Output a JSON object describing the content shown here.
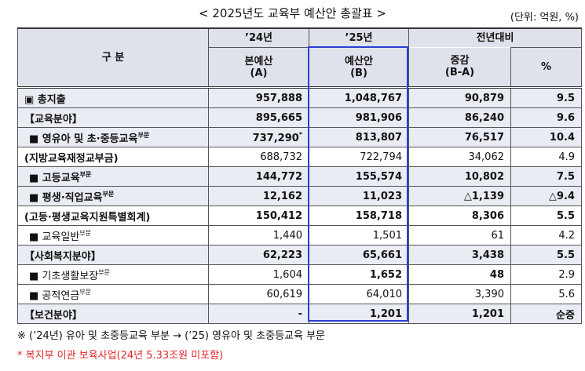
{
  "header": {
    "title": "< 2025년도 교육부 예산안 총괄표 >",
    "unit": "(단위: 억원, %)"
  },
  "table": {
    "head": {
      "group": "구    분",
      "y24": "’24년",
      "y25": "’25년",
      "change": "전년대비",
      "a": "본예산",
      "a_mark": "(A)",
      "b": "예산안",
      "b_mark": "(B)",
      "diff": "증감",
      "diff_mark": "(B-A)",
      "pct": "%"
    },
    "rows": [
      {
        "label": "▣ 총지출",
        "cells": [
          "957,888",
          "1,048,767",
          "90,879",
          "9.5"
        ]
      },
      {
        "label": "【교육분야】",
        "cells": [
          "895,665",
          "981,906",
          "86,240",
          "9.6"
        ]
      },
      {
        "label": "■ 영유아 및 초·중등교육",
        "sup": "부문",
        "cells": [
          "737,290",
          "813,807",
          "76,517",
          "10.4"
        ],
        "note_mark": "*"
      },
      {
        "label": "(지방교육재정교부금)",
        "cells": [
          "688,732",
          "722,794",
          "34,062",
          "4.9"
        ]
      },
      {
        "label": "■ 고등교육",
        "sup": "부문",
        "cells": [
          "144,772",
          "155,574",
          "10,802",
          "7.5"
        ]
      },
      {
        "label": "■ 평생·직업교육",
        "sup": "부문",
        "cells": [
          "12,162",
          "11,023",
          "△1,139",
          "△9.4"
        ]
      },
      {
        "label": "(고등·평생교육지원특별회계)",
        "cells": [
          "150,412",
          "158,718",
          "8,306",
          "5.5"
        ]
      },
      {
        "label": "■ 교육일반",
        "sup": "부문",
        "cells": [
          "1,440",
          "1,501",
          "61",
          "4.2"
        ]
      },
      {
        "label": "【사회복지분야】",
        "cells": [
          "62,223",
          "65,661",
          "3,438",
          "5.5"
        ]
      },
      {
        "label": "■ 기초생활보장",
        "sup": "부문",
        "cells": [
          "1,604",
          "1,652",
          "48",
          "2.9"
        ]
      },
      {
        "label": "■ 공적연금",
        "sup": "부문",
        "cells": [
          "60,619",
          "64,010",
          "3,390",
          "5.6"
        ]
      },
      {
        "label": "【보건분야】",
        "cells": [
          "-",
          "1,201",
          "1,201",
          "순증"
        ]
      }
    ]
  },
  "notes": [
    "※ (’24년) 유아 및 초중등교육 부분 → (’25) 영유아 및 초중등교육 부문",
    "* 복지부 이관 보육사업(24년 5.33조원 미포함)"
  ]
}
